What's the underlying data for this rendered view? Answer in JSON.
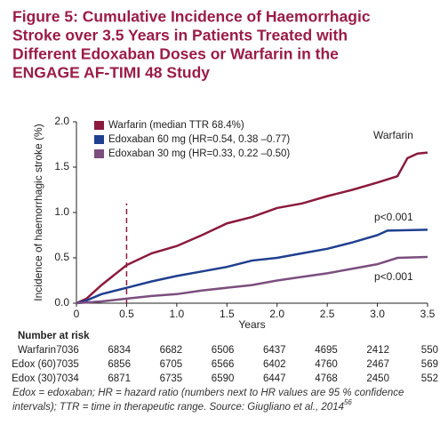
{
  "chart_data": {
    "type": "line",
    "title": [
      "Figure 5: Cumulative Incidence of Haemorrhagic",
      "Stroke over 3.5 Years in Patients Treated with",
      "Different Edoxaban Doses or Warfarin in the",
      "ENGAGE AF-TIMI 48 Study"
    ],
    "y_label": "Incidence of haemorrhagic stroke (%)",
    "x_label": "Years",
    "xlim": [
      0,
      3.5
    ],
    "ylim": [
      0,
      2.0
    ],
    "xticks": [
      0,
      0.5,
      {
        "value": 1,
        "label": "1.0"
      },
      {
        "value": 1.5,
        "label": "1.5"
      },
      {
        "value": 2,
        "label": "2.0"
      },
      {
        "value": 2.5,
        "label": "2.5"
      },
      {
        "value": 3,
        "label": "3.0"
      },
      {
        "value": 3.5,
        "label": "3.5"
      }
    ],
    "yticks": [
      {
        "value": 0,
        "label": "0.0"
      },
      {
        "value": 0.5,
        "label": "0.5"
      },
      {
        "value": 1,
        "label": "1.0"
      },
      {
        "value": 1.5,
        "label": "1.5"
      },
      {
        "value": 2,
        "label": "2.0"
      }
    ],
    "reference_line": {
      "x": 0.5,
      "y_top": 1.1
    },
    "legend": "upper left",
    "series": [
      {
        "name": "Warfarin (median TTR 68.4%)",
        "color": "#8b1a3c",
        "x": [
          0,
          0.1,
          0.25,
          0.5,
          0.75,
          1.0,
          1.25,
          1.5,
          1.75,
          2.0,
          2.25,
          2.5,
          2.75,
          3.0,
          3.2,
          3.3,
          3.4,
          3.5
        ],
        "values": [
          0,
          0.05,
          0.2,
          0.42,
          0.55,
          0.63,
          0.75,
          0.88,
          0.95,
          1.05,
          1.1,
          1.18,
          1.25,
          1.33,
          1.4,
          1.6,
          1.65,
          1.66
        ]
      },
      {
        "name": "Edoxaban 60 mg (HR=0.54, 0.38 –0.77)",
        "color": "#1f3f8f",
        "x": [
          0,
          0.1,
          0.25,
          0.5,
          0.75,
          1.0,
          1.25,
          1.5,
          1.75,
          2.0,
          2.25,
          2.5,
          2.75,
          3.0,
          3.1,
          3.5
        ],
        "values": [
          0,
          0.03,
          0.1,
          0.17,
          0.24,
          0.3,
          0.35,
          0.4,
          0.47,
          0.5,
          0.55,
          0.6,
          0.67,
          0.75,
          0.8,
          0.81
        ]
      },
      {
        "name": "Edoxaban 30 mg (HR=0.33, 0.22 –0.50)",
        "color": "#7b4e7e",
        "x": [
          0,
          0.25,
          0.5,
          0.75,
          1.0,
          1.25,
          1.5,
          1.75,
          2.0,
          2.25,
          2.5,
          2.75,
          3.0,
          3.2,
          3.5
        ],
        "values": [
          0,
          0.02,
          0.05,
          0.08,
          0.1,
          0.14,
          0.17,
          0.2,
          0.25,
          0.29,
          0.33,
          0.38,
          0.43,
          0.5,
          0.51
        ]
      }
    ],
    "annotations": [
      "Warfarin",
      "p<0.001",
      "p<0.001"
    ],
    "risk_table": {
      "title": "Number at risk",
      "rows": [
        {
          "label": "Warfarin",
          "values": [
            7036,
            6834,
            6682,
            6506,
            6437,
            4695,
            2412,
            550
          ]
        },
        {
          "label": "Edox (60)",
          "values": [
            7035,
            6856,
            6705,
            6566,
            6402,
            4760,
            2467,
            569
          ]
        },
        {
          "label": "Edox (30)",
          "values": [
            7034,
            6871,
            6735,
            6590,
            6447,
            4768,
            2450,
            552
          ]
        }
      ]
    },
    "footnote": [
      "Edox = edoxaban; HR = hazard ratio (numbers next to HR values are 95 % confidence",
      "intervals); TTR = time in therapeutic range. Source: Giugliano et al., 2014"
    ],
    "footnote_ref": "56"
  }
}
